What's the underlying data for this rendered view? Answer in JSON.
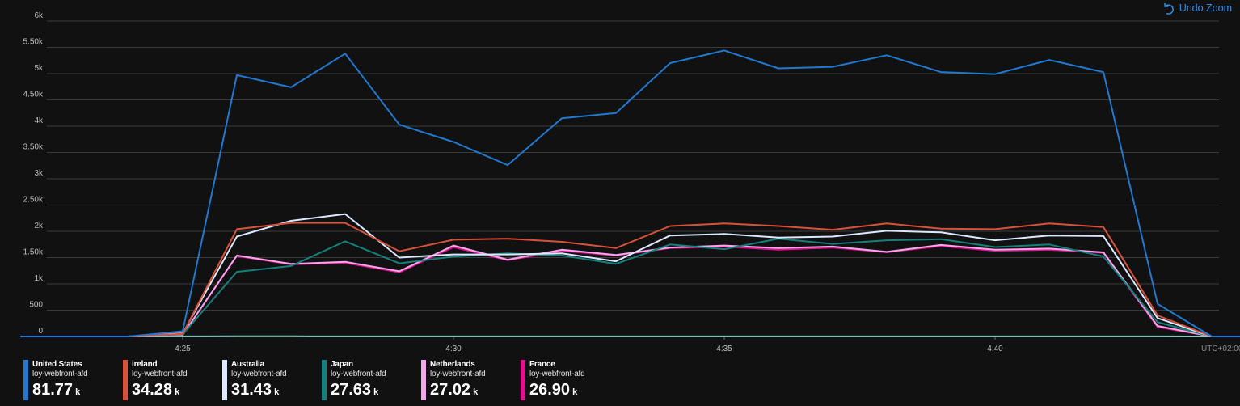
{
  "toolbar": {
    "undo_zoom_label": "Undo Zoom",
    "undo_icon": "undo-icon"
  },
  "timezone_label": "UTC+02:00",
  "chart_data": {
    "type": "line",
    "title": "",
    "xlabel": "",
    "ylabel": "",
    "grid": true,
    "legend_position": "bottom",
    "ylim": [
      0,
      6000
    ],
    "y_ticks": [
      0,
      500,
      1000,
      1500,
      2000,
      2500,
      3000,
      3500,
      4000,
      4500,
      5000,
      5500,
      6000
    ],
    "y_tick_labels": [
      "0",
      "500",
      "1k",
      "1.50k",
      "2k",
      "2.50k",
      "3k",
      "3.50k",
      "4k",
      "4.50k",
      "5k",
      "5.50k",
      "6k"
    ],
    "x_ticks": [
      "4:25",
      "4:30",
      "4:35",
      "4:40"
    ],
    "x": [
      "4:22",
      "4:23",
      "4:24",
      "4:25",
      "4:26",
      "4:27",
      "4:28",
      "4:29",
      "4:30",
      "4:31",
      "4:32",
      "4:33",
      "4:34",
      "4:35",
      "4:36",
      "4:37",
      "4:38",
      "4:39",
      "4:40",
      "4:41",
      "4:42",
      "4:43",
      "4:44",
      "4:45"
    ],
    "series": [
      {
        "name": "United States",
        "sub": "loy-webfront-afd",
        "total": "81.77",
        "unit": "k",
        "color": "#1f78d1",
        "values": [
          0,
          0,
          0,
          100,
          4970,
          4740,
          5380,
          4030,
          3700,
          3260,
          4150,
          4250,
          5200,
          5440,
          5100,
          5130,
          5350,
          5030,
          4990,
          5260,
          5030,
          620,
          0,
          0
        ]
      },
      {
        "name": "ireland",
        "sub": "loy-webfront-afd",
        "total": "34.28",
        "unit": "k",
        "color": "#d9513a",
        "values": [
          0,
          0,
          0,
          50,
          2040,
          2160,
          2160,
          1620,
          1840,
          1860,
          1800,
          1680,
          2100,
          2150,
          2100,
          2030,
          2150,
          2050,
          2040,
          2150,
          2080,
          400,
          0,
          0
        ]
      },
      {
        "name": "Australia",
        "sub": "loy-webfront-afd",
        "total": "31.43",
        "unit": "k",
        "color": "#dbe8ff",
        "values": [
          0,
          0,
          0,
          60,
          1900,
          2200,
          2330,
          1500,
          1560,
          1560,
          1580,
          1430,
          1920,
          1950,
          1880,
          1900,
          2010,
          1980,
          1830,
          1920,
          1910,
          350,
          0,
          0
        ]
      },
      {
        "name": "Japan",
        "sub": "loy-webfront-afd",
        "total": "27.63",
        "unit": "k",
        "color": "#13807b",
        "values": [
          0,
          0,
          0,
          40,
          1230,
          1340,
          1810,
          1390,
          1520,
          1580,
          1540,
          1380,
          1750,
          1660,
          1860,
          1760,
          1830,
          1850,
          1700,
          1750,
          1520,
          270,
          0,
          0
        ]
      },
      {
        "name": "Netherlands",
        "sub": "loy-webfront-afd",
        "total": "27.02",
        "unit": "k",
        "color": "#f1a7ea",
        "values": [
          0,
          0,
          0,
          30,
          1540,
          1380,
          1420,
          1240,
          1730,
          1460,
          1650,
          1550,
          1690,
          1730,
          1680,
          1710,
          1610,
          1740,
          1650,
          1670,
          1600,
          200,
          0,
          0
        ]
      },
      {
        "name": "France",
        "sub": "loy-webfront-afd",
        "total": "26.90",
        "unit": "k",
        "color": "#e3108f",
        "values": [
          0,
          0,
          0,
          30,
          1530,
          1370,
          1400,
          1220,
          1700,
          1450,
          1630,
          1540,
          1680,
          1710,
          1650,
          1690,
          1600,
          1720,
          1630,
          1650,
          1590,
          180,
          0,
          0
        ]
      },
      {
        "name": "",
        "sub": "",
        "total": "",
        "unit": "",
        "color": "#8fd3c8",
        "values": [
          0,
          0,
          0,
          2,
          5,
          3,
          2,
          2,
          2,
          2,
          2,
          2,
          2,
          2,
          2,
          2,
          2,
          2,
          2,
          2,
          2,
          1,
          0,
          0
        ]
      }
    ]
  }
}
